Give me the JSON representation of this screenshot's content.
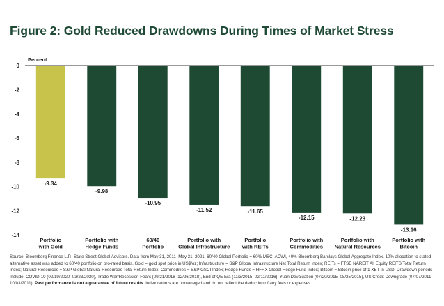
{
  "title": "Figure 2: Gold Reduced Drawdowns During Times of Market Stress",
  "colors": {
    "title": "#1f4a35",
    "bar_dark": "#1e4a33",
    "bar_gold": "#c8c34a",
    "axis": "#333333"
  },
  "chart_data": {
    "type": "bar",
    "ylabel": "Percent",
    "ylim": [
      -14,
      0
    ],
    "yticks": [
      0,
      -2,
      -4,
      -6,
      -8,
      -10,
      -12,
      -14
    ],
    "grid": false,
    "categories": [
      [
        "Portfolio",
        "with Gold"
      ],
      [
        "Portfolio with",
        "Hedge Funds"
      ],
      [
        "60/40",
        "Portfolio"
      ],
      [
        "Portfolio with",
        "Global Infrastructure"
      ],
      [
        "Portfolio",
        "with REITs"
      ],
      [
        "Portfolio with",
        "Commodities"
      ],
      [
        "Portfolio with",
        "Natural Resources"
      ],
      [
        "Portfolio with",
        "Bitcoin"
      ]
    ],
    "values": [
      -9.34,
      -9.98,
      -10.95,
      -11.52,
      -11.65,
      -12.15,
      -12.23,
      -13.16
    ],
    "value_labels": [
      "-9.34",
      "-9.98",
      "-10.95",
      "-11.52",
      "-11.65",
      "-12.15",
      "-12.23",
      "-13.16"
    ],
    "highlight_index": 0
  },
  "source": {
    "text": "Source: Bloomberg Finance L.P., State Street Global Advisors. Data from May 31, 2011–May 31, 2021. 60/40 Global Portfolio = 60% MSCI ACWI, 40% Bloomberg Barclays Global Aggregate Index. 10% allocation to stated alternative asset was added to 60/40 portfolio on pro-rated basis. Gold = gold spot price in US$/oz; Infrastructure = S&P Global Infrastructure Net Total Return Index; REITs = FTSE NAREIT All Equity REITS Total Return Index; Natural Resources = S&P Global Natural Resources Total Return Index; Commodities = S&P GSCI Index; Hedge Funds = HFRX Global Hedge Fund Index; Bitcoin = Bitcoin price of 1 XBT in USD. Drawdown periods include: COVID-19 (02/19/2020–03/23/2020), Trade War/Recession Fears (09/21/2018–12/26/2018), End of QE Era (11/3/2015–02/11/2016), Yuan Devaluation (07/20/2015–08/25/2015), US Credit Downgrade (07/07/2011–10/03/2011).",
    "bold": "Past performance is not a guarantee of future results.",
    "tail": "Index returns are unmanaged and do not reflect the deduction of any fees or expenses."
  }
}
